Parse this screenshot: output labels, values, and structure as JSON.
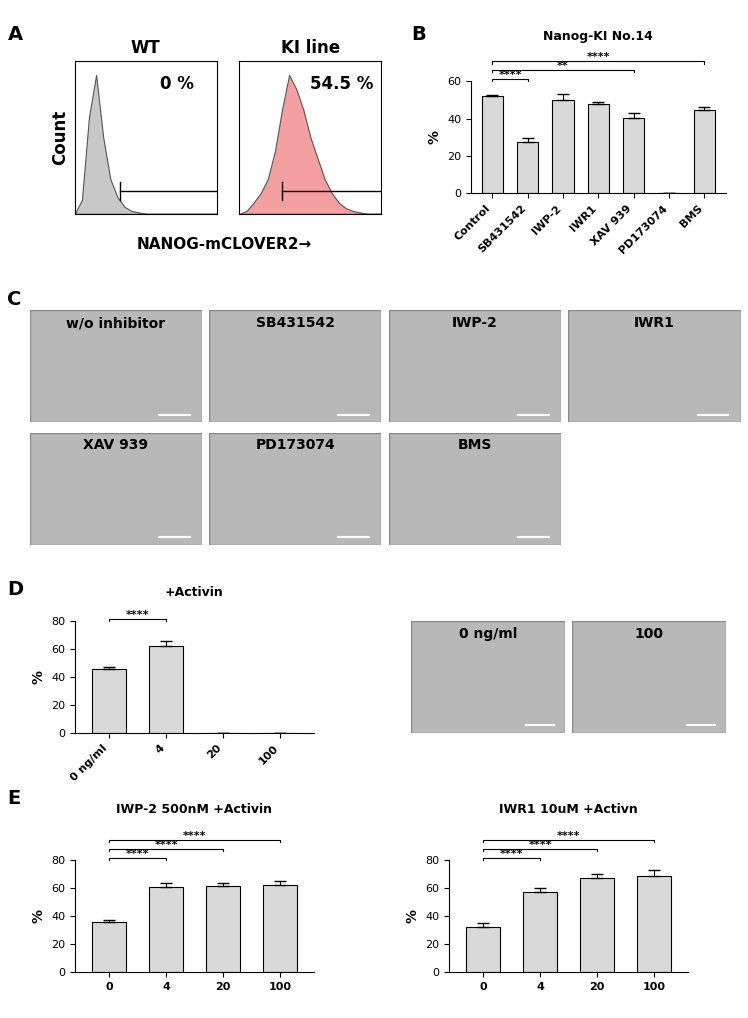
{
  "chart_data": [
    {
      "panel": "A",
      "type": "area",
      "title": "WT",
      "y_label": "Count",
      "x_label": "NANOG-mCLOVER2→",
      "x": [
        0,
        5,
        10,
        15,
        20,
        25,
        30,
        35,
        40,
        45,
        50,
        55,
        60,
        65,
        70,
        75,
        80,
        85,
        90,
        95,
        100
      ],
      "values": [
        0,
        10,
        70,
        100,
        55,
        25,
        12,
        5,
        2,
        1,
        0,
        0,
        0,
        0,
        0,
        0,
        0,
        0,
        0,
        0,
        0
      ],
      "color": "#c8c8c8",
      "gate": [
        32,
        100
      ],
      "annotation": "0 %",
      "xlim": [
        0,
        100
      ],
      "ylim": [
        0,
        110
      ],
      "tick_labels": false
    },
    {
      "type": "area",
      "title": "KI line",
      "x": [
        0,
        5,
        10,
        15,
        20,
        25,
        30,
        35,
        40,
        45,
        50,
        55,
        60,
        65,
        70,
        75,
        80,
        85,
        90,
        95,
        100
      ],
      "values": [
        0,
        2,
        8,
        15,
        25,
        45,
        75,
        100,
        90,
        75,
        55,
        40,
        25,
        15,
        8,
        4,
        2,
        1,
        0,
        0,
        0
      ],
      "color": "#f4a0a0",
      "gate": [
        30,
        100
      ],
      "annotation": "54.5 %",
      "xlim": [
        0,
        100
      ],
      "ylim": [
        0,
        110
      ],
      "tick_labels": false
    },
    {
      "panel": "B",
      "type": "bar",
      "title": "Nanog-KI No.14",
      "y_label": "%",
      "categories": [
        "Control",
        "SB431542",
        "IWP-2",
        "IWR1",
        "XAV 939",
        "PD173074",
        "BMS"
      ],
      "values": [
        52,
        27.5,
        50,
        48,
        40.5,
        0,
        44.5
      ],
      "errors": [
        1,
        2,
        3.5,
        1,
        2.5,
        0,
        2
      ],
      "color": "#d9d9d9",
      "ylim": [
        0,
        60
      ],
      "yticks": [
        0,
        20,
        40,
        60
      ],
      "significance": [
        {
          "between": [
            "Control",
            "SB431542"
          ],
          "label": "****"
        },
        {
          "between": [
            "Control",
            "XAV 939"
          ],
          "label": "**"
        },
        {
          "between": [
            "Control",
            "BMS"
          ],
          "label": "****"
        }
      ]
    },
    {
      "panel": "C",
      "type": "image",
      "images": [
        "w/o inhibitor",
        "SB431542",
        "IWP-2",
        "IWR1",
        "XAV 939",
        "PD173074",
        "BMS"
      ]
    },
    {
      "panel": "D",
      "type": "bar",
      "title": "+Activin",
      "y_label": "%",
      "categories": [
        "0 ng/ml",
        "4",
        "20",
        "100"
      ],
      "values": [
        45.5,
        62,
        0,
        0
      ],
      "errors": [
        1.5,
        3.5,
        0,
        0
      ],
      "color": "#d9d9d9",
      "ylim": [
        0,
        80
      ],
      "yticks": [
        0,
        20,
        40,
        60,
        80
      ],
      "significance": [
        {
          "between": [
            "0 ng/ml",
            "4"
          ],
          "label": "****"
        }
      ]
    },
    {
      "type": "image",
      "images": [
        "0 ng/ml",
        "100"
      ]
    },
    {
      "panel": "E",
      "type": "bar",
      "title": "IWP-2 500nM +Activin",
      "y_label": "%",
      "categories": [
        "0",
        "4",
        "20",
        "100"
      ],
      "values": [
        35.5,
        61,
        61.5,
        62.5
      ],
      "errors": [
        2,
        2.5,
        2,
        3
      ],
      "color": "#d9d9d9",
      "ylim": [
        0,
        80
      ],
      "yticks": [
        0,
        20,
        40,
        60,
        80
      ],
      "significance": [
        {
          "between": [
            "0",
            "4"
          ],
          "label": "****"
        },
        {
          "between": [
            "0",
            "20"
          ],
          "label": "****"
        },
        {
          "between": [
            "0",
            "100"
          ],
          "label": "****"
        }
      ]
    },
    {
      "type": "bar",
      "title": "IWR1 10uM +Activn",
      "y_label": "%",
      "categories": [
        "0",
        "4",
        "20",
        "100"
      ],
      "values": [
        32.5,
        57.5,
        67.5,
        68.5
      ],
      "errors": [
        2.5,
        2.5,
        2.5,
        4.5
      ],
      "color": "#d9d9d9",
      "ylim": [
        0,
        80
      ],
      "yticks": [
        0,
        20,
        40,
        60,
        80
      ],
      "significance": [
        {
          "between": [
            "0",
            "4"
          ],
          "label": "****"
        },
        {
          "between": [
            "0",
            "20"
          ],
          "label": "****"
        },
        {
          "between": [
            "0",
            "100"
          ],
          "label": "****"
        }
      ]
    }
  ]
}
